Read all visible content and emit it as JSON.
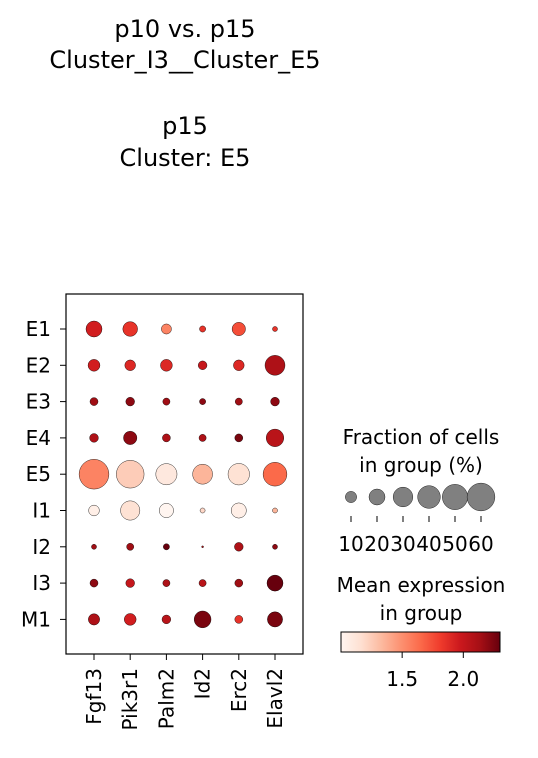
{
  "title_lines": [
    "p10 vs. p15",
    "Cluster_I3__Cluster_E5",
    "",
    "p15",
    "Cluster: E5"
  ],
  "chart_data": {
    "type": "dotplot",
    "genes": [
      "Fgf13",
      "Pik3r1",
      "Palm2",
      "Id2",
      "Erc2",
      "Elavl2"
    ],
    "groups": [
      "E1",
      "E2",
      "E3",
      "E4",
      "E5",
      "I1",
      "I2",
      "I3",
      "M1"
    ],
    "fraction_pct": [
      [
        20,
        17,
        8,
        3,
        14,
        2
      ],
      [
        11,
        9,
        11,
        6,
        9,
        31
      ],
      [
        5,
        6,
        4,
        3,
        4,
        6
      ],
      [
        6,
        14,
        5,
        4,
        5,
        24
      ],
      [
        69,
        60,
        35,
        31,
        36,
        44
      ],
      [
        9,
        29,
        16,
        2,
        18,
        2
      ],
      [
        2,
        4,
        3,
        0.3,
        6,
        2
      ],
      [
        5,
        6,
        4,
        4,
        5,
        20
      ],
      [
        10,
        11,
        6,
        22,
        5,
        18
      ]
    ],
    "mean_expression": [
      [
        1.95,
        1.85,
        1.55,
        1.85,
        1.75,
        1.85
      ],
      [
        1.95,
        1.9,
        1.9,
        2.0,
        1.9,
        2.1
      ],
      [
        2.15,
        2.2,
        2.15,
        2.2,
        2.15,
        2.2
      ],
      [
        2.1,
        2.2,
        2.1,
        2.1,
        2.25,
        2.05
      ],
      [
        1.55,
        1.25,
        1.1,
        1.35,
        1.15,
        1.65
      ],
      [
        1.05,
        1.15,
        1.0,
        1.2,
        1.05,
        1.35
      ],
      [
        2.15,
        2.15,
        2.3,
        2.1,
        2.1,
        2.2
      ],
      [
        2.2,
        2.0,
        2.1,
        2.05,
        2.15,
        2.3
      ],
      [
        2.1,
        1.95,
        2.05,
        2.25,
        1.85,
        2.25
      ]
    ],
    "size_legend": {
      "title_lines": [
        "Fraction of cells",
        "in group (%)"
      ],
      "values": [
        10,
        20,
        30,
        40,
        50,
        60
      ]
    },
    "color_legend": {
      "title_lines": [
        "Mean expression",
        "in group"
      ],
      "range": [
        1.0,
        2.3
      ],
      "ticks": [
        1.5,
        2.0
      ],
      "colormap": "Reds",
      "stops": [
        "#fff5f0",
        "#fee0d2",
        "#fcbba1",
        "#fc9272",
        "#fb6a4a",
        "#ef3b2c",
        "#cb181d",
        "#a50f15",
        "#67000d"
      ]
    }
  }
}
